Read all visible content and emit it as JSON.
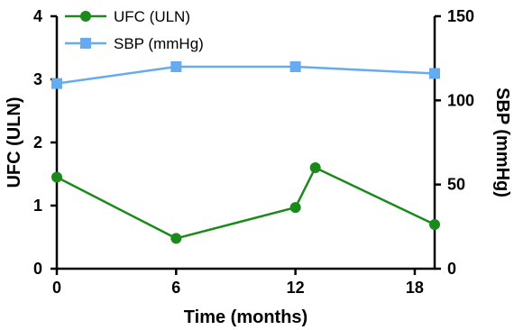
{
  "chart_data": {
    "type": "line",
    "xlabel": "Time (months)",
    "ylabel": "UFC (ULN)",
    "y2label": "SBP (mmHg)",
    "xlim": [
      0,
      19
    ],
    "ylim": [
      0,
      4
    ],
    "y2lim": [
      0,
      150
    ],
    "x_ticks": [
      "0",
      "6",
      "12",
      "18"
    ],
    "y_ticks": [
      "0",
      "1",
      "2",
      "3",
      "4"
    ],
    "y2_ticks": [
      "0",
      "50",
      "100",
      "150"
    ],
    "grid": false,
    "legend_position": "top-left",
    "series": [
      {
        "name": "UFC (ULN)",
        "axis": "left",
        "color": "#1a8a1a",
        "marker": "circle",
        "x": [
          0,
          6,
          12,
          13,
          19
        ],
        "y": [
          1.45,
          0.48,
          0.97,
          1.6,
          0.7
        ]
      },
      {
        "name": "SBP (mmHg)",
        "axis": "right",
        "color": "#66aaf0",
        "marker": "square",
        "x": [
          0,
          6,
          12,
          19
        ],
        "y": [
          110,
          120,
          120,
          116
        ]
      }
    ]
  }
}
